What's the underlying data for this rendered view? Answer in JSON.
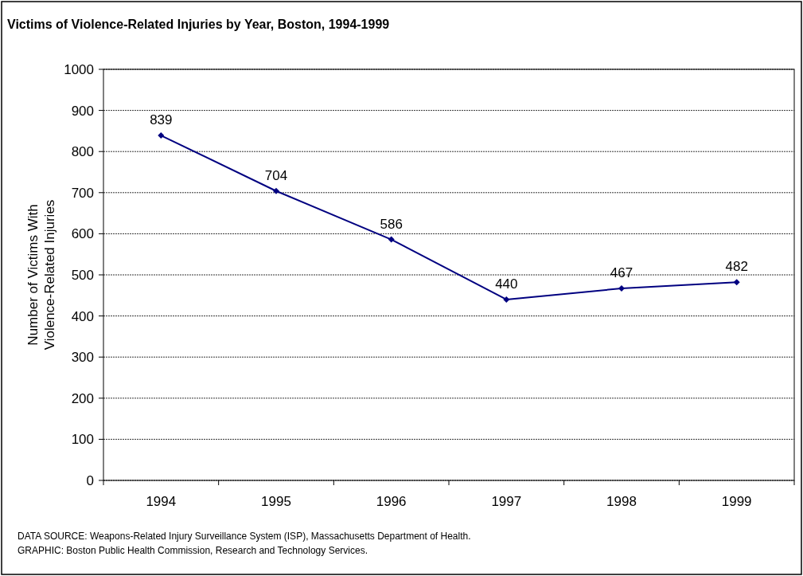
{
  "chart_data": {
    "type": "line",
    "title": "Victims of Violence-Related Injuries by Year, Boston, 1994-1999",
    "ylabel": "Number of Victims With\nViolence-Related Injuries",
    "categories": [
      "1994",
      "1995",
      "1996",
      "1997",
      "1998",
      "1999"
    ],
    "series": [
      {
        "color": "#000080",
        "values": [
          839,
          704,
          586,
          440,
          467,
          482
        ]
      }
    ],
    "ylim": [
      0,
      1000
    ],
    "yticks": [
      0,
      100,
      200,
      300,
      400,
      500,
      600,
      700,
      800,
      900,
      1000
    ],
    "grid": "y",
    "marker": "diamond",
    "line_style": "solid",
    "data_labels": true,
    "annotations": [
      "DATA SOURCE:  Weapons-Related Injury Surveillance System (ISP), Massachusetts Department of Health.",
      "GRAPHIC:  Boston Public Health Commission, Research and Technology Services."
    ]
  }
}
